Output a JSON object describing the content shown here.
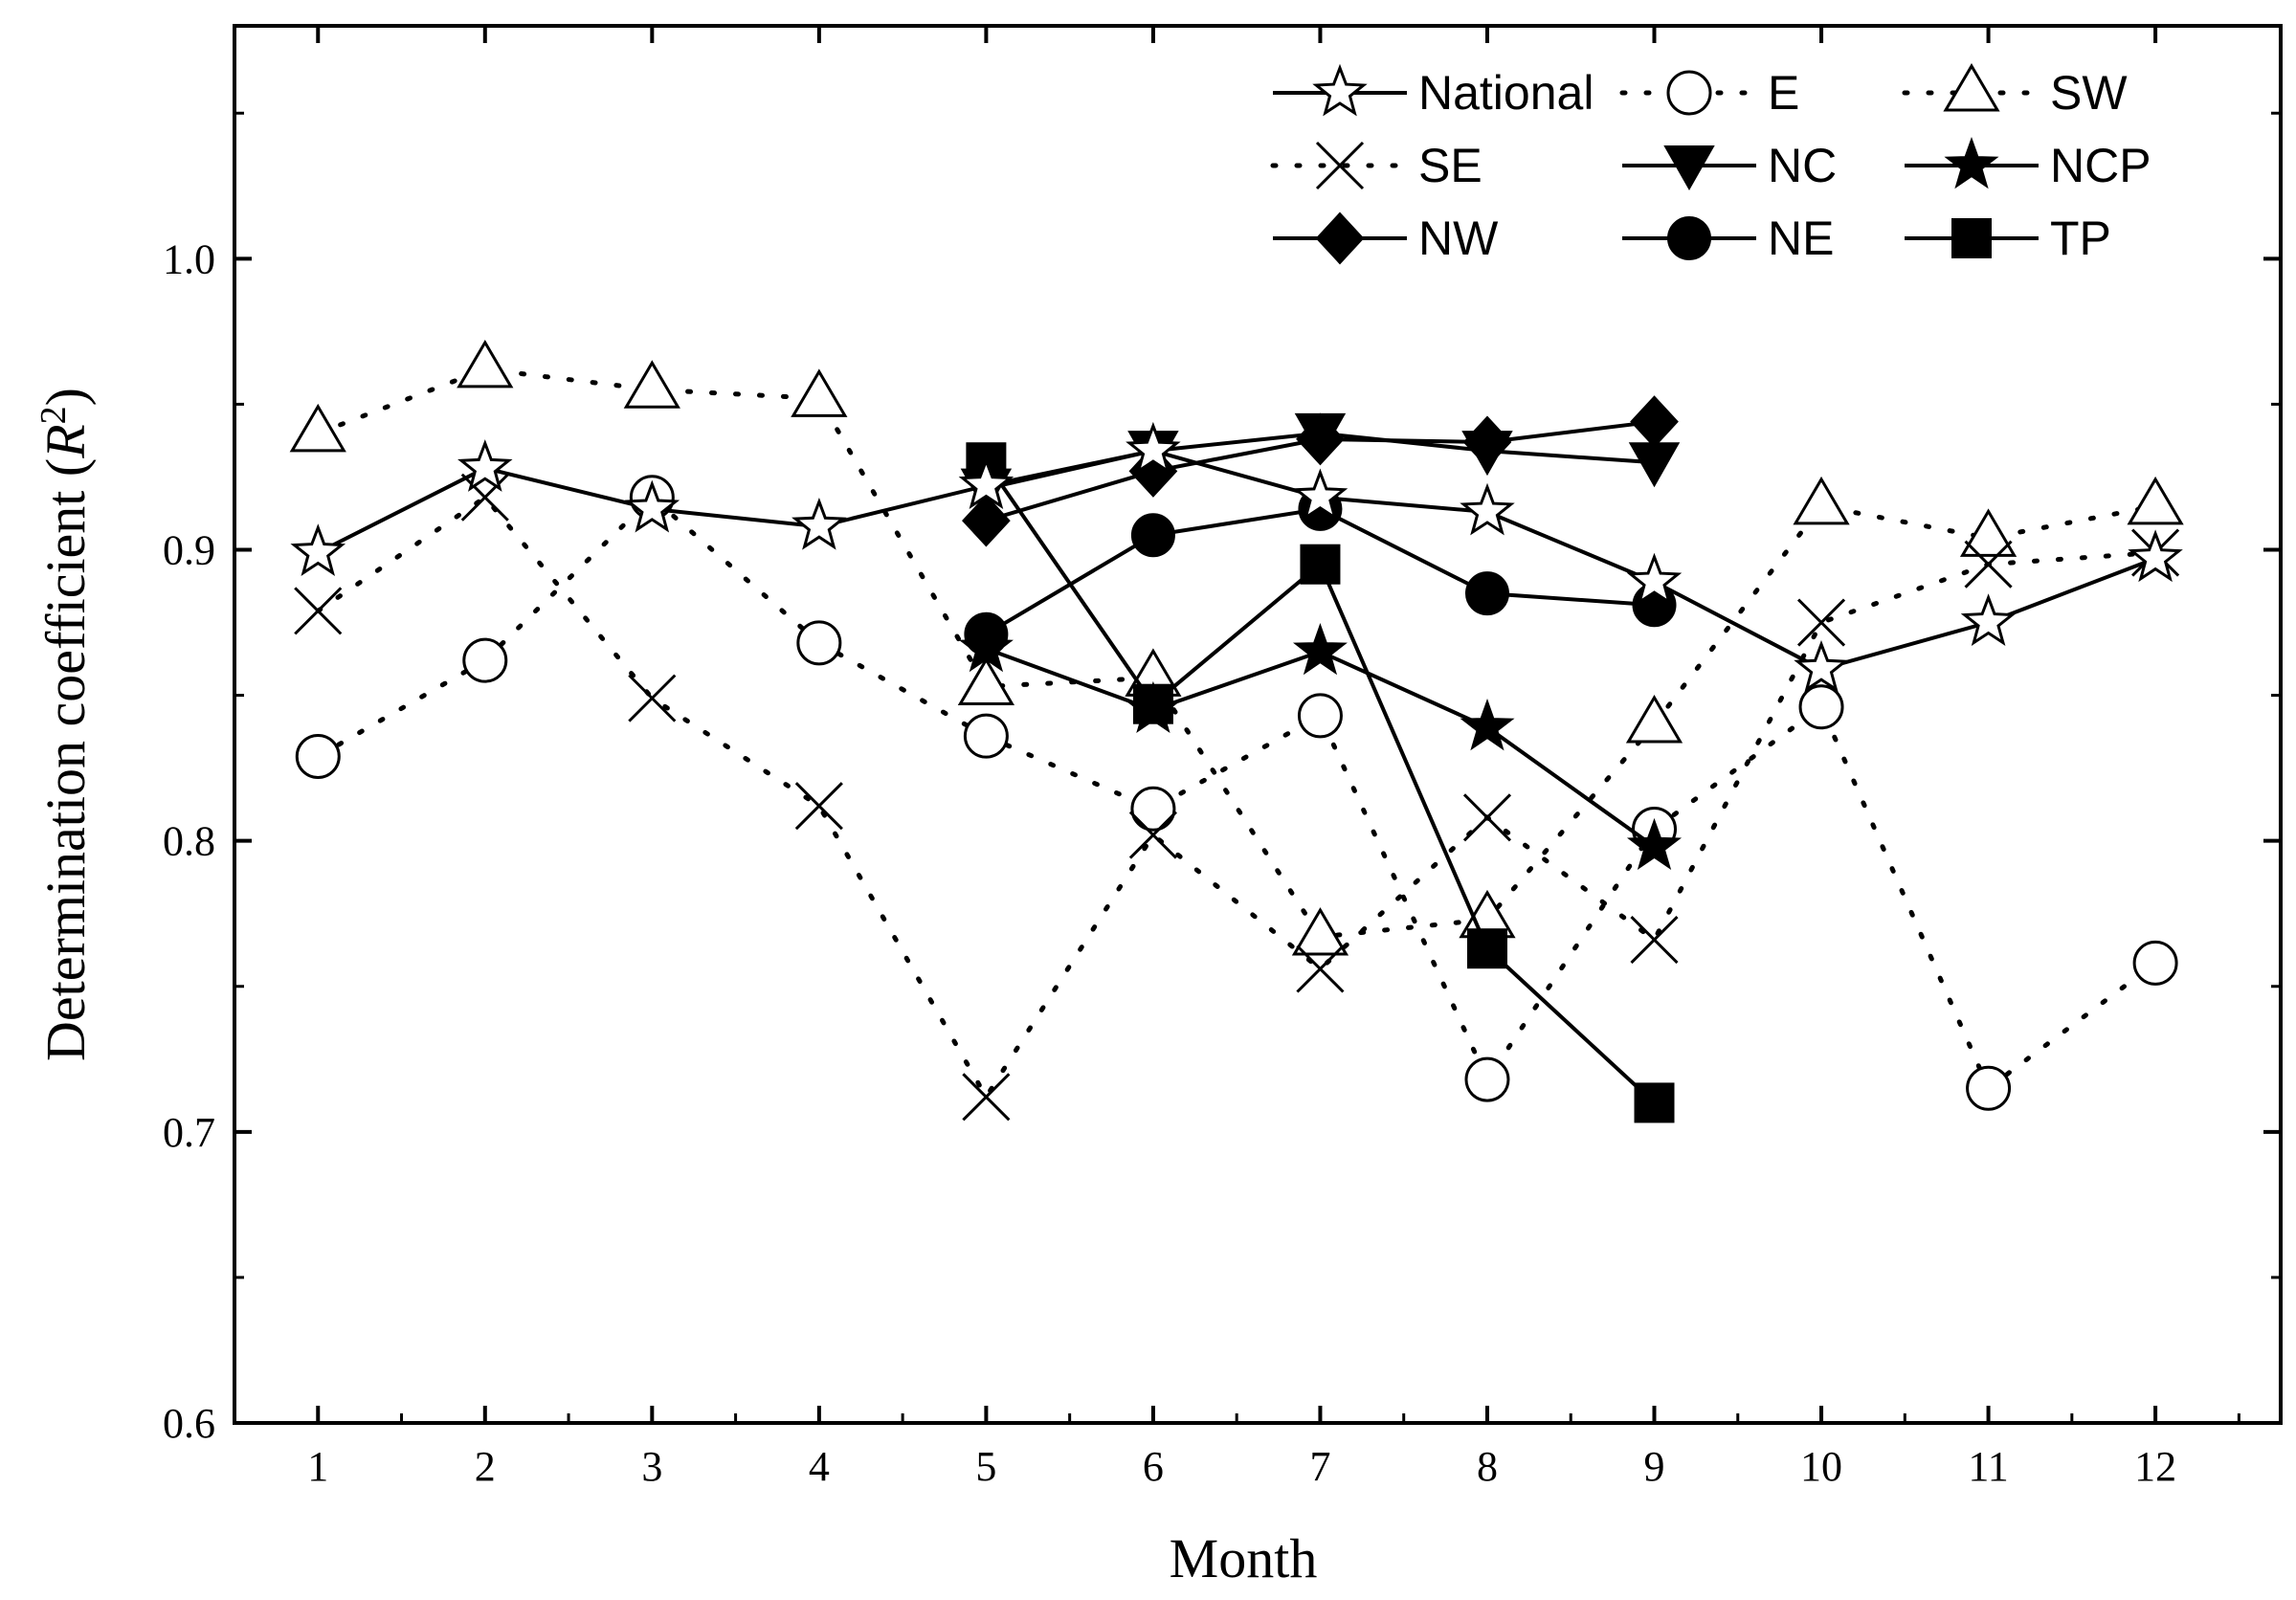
{
  "chart_data": {
    "type": "line",
    "xlabel": "Month",
    "ylabel_prefix": "Determination coefficient (",
    "ylabel_var": "R",
    "ylabel_sup": "2",
    "ylabel_suffix": ")",
    "xlim": [
      0.5,
      12.75
    ],
    "ylim": [
      0.6,
      1.08
    ],
    "xticks": [
      1,
      2,
      3,
      4,
      5,
      6,
      7,
      8,
      9,
      10,
      11,
      12
    ],
    "xtick_labels": [
      "1",
      "2",
      "3",
      "4",
      "5",
      "6",
      "7",
      "8",
      "9",
      "10",
      "11",
      "12"
    ],
    "yticks": [
      0.6,
      0.7,
      0.8,
      0.9,
      1.0
    ],
    "ytick_labels": [
      "0.6",
      "0.7",
      "0.8",
      "0.9",
      "1.0"
    ],
    "legend_position": "top-right",
    "series": [
      {
        "name": "National",
        "marker": "star-open",
        "line": "solid",
        "x": [
          1,
          2,
          3,
          4,
          5,
          6,
          7,
          8,
          9,
          10,
          11,
          12
        ],
        "values": [
          0.899,
          0.928,
          0.914,
          0.908,
          0.922,
          0.934,
          0.918,
          0.913,
          0.889,
          0.859,
          0.875,
          0.897
        ]
      },
      {
        "name": "E",
        "marker": "circle-open",
        "line": "dotted",
        "x": [
          1,
          2,
          3,
          4,
          5,
          6,
          7,
          8,
          9,
          10,
          11,
          12
        ],
        "values": [
          0.829,
          0.862,
          0.918,
          0.868,
          0.836,
          0.811,
          0.843,
          0.718,
          0.804,
          0.846,
          0.715,
          0.758
        ]
      },
      {
        "name": "SW",
        "marker": "triangle-open",
        "line": "dotted",
        "x": [
          1,
          2,
          3,
          4,
          5,
          6,
          7,
          8,
          9,
          10,
          11,
          12
        ],
        "values": [
          0.94,
          0.962,
          0.955,
          0.952,
          0.853,
          0.856,
          0.767,
          0.773,
          0.84,
          0.915,
          0.904,
          0.915
        ]
      },
      {
        "name": "SE",
        "marker": "x",
        "line": "dotted",
        "x": [
          1,
          2,
          3,
          4,
          5,
          6,
          7,
          8,
          9,
          10,
          11,
          12
        ],
        "values": [
          0.879,
          0.918,
          0.849,
          0.812,
          0.712,
          0.802,
          0.756,
          0.808,
          0.766,
          0.875,
          0.895,
          0.899
        ]
      },
      {
        "name": "NC",
        "marker": "triangle-down-filled",
        "line": "solid",
        "x": [
          5,
          6,
          7,
          8,
          9
        ],
        "values": [
          0.921,
          0.934,
          0.94,
          0.934,
          0.93
        ]
      },
      {
        "name": "NCP",
        "marker": "star-filled",
        "line": "solid",
        "x": [
          5,
          6,
          7,
          8,
          9
        ],
        "values": [
          0.866,
          0.845,
          0.865,
          0.839,
          0.798
        ]
      },
      {
        "name": "NW",
        "marker": "diamond-filled",
        "line": "solid",
        "x": [
          5,
          6,
          7,
          8,
          9
        ],
        "values": [
          0.91,
          0.927,
          0.938,
          0.937,
          0.944
        ]
      },
      {
        "name": "NE",
        "marker": "circle-filled",
        "line": "solid",
        "x": [
          5,
          6,
          7,
          8,
          9
        ],
        "values": [
          0.871,
          0.905,
          0.914,
          0.885,
          0.881
        ]
      },
      {
        "name": "TP",
        "marker": "square-filled",
        "line": "solid",
        "x": [
          5,
          6,
          7,
          8,
          9
        ],
        "values": [
          0.93,
          0.847,
          0.895,
          0.763,
          0.71
        ]
      }
    ]
  }
}
